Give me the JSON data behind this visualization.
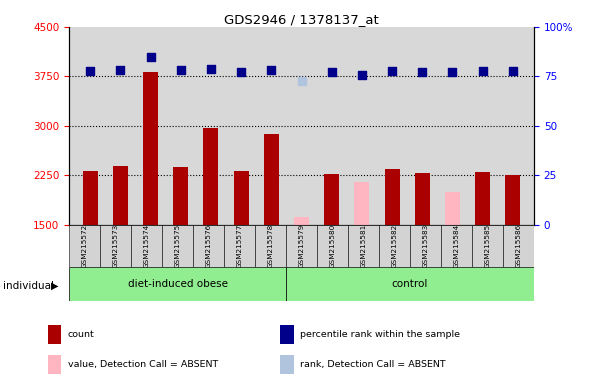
{
  "title": "GDS2946 / 1378137_at",
  "samples": [
    "GSM215572",
    "GSM215573",
    "GSM215574",
    "GSM215575",
    "GSM215576",
    "GSM215577",
    "GSM215578",
    "GSM215579",
    "GSM215580",
    "GSM215581",
    "GSM215582",
    "GSM215583",
    "GSM215584",
    "GSM215585",
    "GSM215586"
  ],
  "bar_values": [
    2320,
    2390,
    3820,
    2370,
    2960,
    2320,
    2870,
    1620,
    2270,
    2140,
    2350,
    2290,
    2000,
    2300,
    2250
  ],
  "bar_absent": [
    false,
    false,
    false,
    false,
    false,
    false,
    false,
    true,
    false,
    true,
    false,
    false,
    true,
    false,
    false
  ],
  "rank_values": [
    3830,
    3840,
    4050,
    3840,
    3860,
    3810,
    3840,
    3680,
    3820,
    3770,
    3830,
    3820,
    3820,
    3830,
    3830
  ],
  "rank_absent": [
    false,
    false,
    false,
    false,
    false,
    false,
    false,
    true,
    false,
    false,
    false,
    false,
    false,
    false,
    false
  ],
  "groups_obese_count": 7,
  "groups_control_count": 8,
  "ylim_left": [
    1500,
    4500
  ],
  "yticks_left": [
    1500,
    2250,
    3000,
    3750,
    4500
  ],
  "ytick_right_labels": [
    "0",
    "25",
    "50",
    "75",
    "100%"
  ],
  "grid_values": [
    2250,
    3000,
    3750
  ],
  "bar_color_present": "#AA0000",
  "bar_color_absent": "#FFB6C1",
  "rank_color_present": "#00008B",
  "rank_color_absent": "#B0C4DE",
  "bg_color": "#D8D8D8",
  "group_color": "#90EE90",
  "legend_items": [
    {
      "label": "count",
      "color": "#AA0000"
    },
    {
      "label": "percentile rank within the sample",
      "color": "#00008B"
    },
    {
      "label": "value, Detection Call = ABSENT",
      "color": "#FFB6C1"
    },
    {
      "label": "rank, Detection Call = ABSENT",
      "color": "#B0C4DE"
    }
  ],
  "rank_dot_size": 35,
  "bar_width": 0.5,
  "individual_label": "individual"
}
